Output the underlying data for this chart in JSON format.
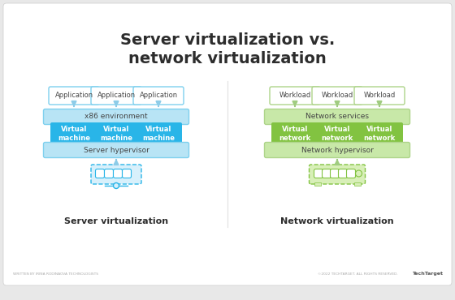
{
  "title": "Server virtualization vs.\nnetwork virtualization",
  "title_fontsize": 14,
  "title_fontweight": "bold",
  "title_color": "#2d2d2d",
  "bg_color": "#e8e8e8",
  "panel_bg": "#ffffff",
  "left_label": "Server virtualization",
  "right_label": "Network virtualization",
  "left_top_boxes": [
    "Application",
    "Application",
    "Application"
  ],
  "right_top_boxes": [
    "Workload",
    "Workload",
    "Workload"
  ],
  "left_mid_bar": "x86 environment",
  "right_mid_bar": "Network services",
  "left_vm_boxes": [
    "Virtual\nmachine",
    "Virtual\nmachine",
    "Virtual\nmachine"
  ],
  "right_vm_boxes": [
    "Virtual\nnetwork",
    "Virtual\nnetwork",
    "Virtual\nnetwork"
  ],
  "left_hyp_bar": "Server hypervisor",
  "right_hyp_bar": "Network hypervisor",
  "left_top_box_fc": "#ffffff",
  "left_top_box_ec": "#7fd0ee",
  "right_top_box_fc": "#ffffff",
  "right_top_box_ec": "#aed48a",
  "left_mid_fc": "#b8e4f5",
  "left_mid_ec": "#7fd0ee",
  "right_mid_fc": "#c8e8a8",
  "right_mid_ec": "#aed48a",
  "left_vm_fc": "#29b5e8",
  "right_vm_fc": "#82c341",
  "left_hyp_fc": "#b8e4f5",
  "left_hyp_ec": "#7fd0ee",
  "right_hyp_fc": "#c8e8a8",
  "right_hyp_ec": "#aed48a",
  "arrow_left_color": "#8dcce8",
  "arrow_right_color": "#a0cc80",
  "srv_icon_fc": "#d8f0fb",
  "srv_icon_ec": "#29b5e8",
  "net_icon_fc": "#d8efb8",
  "net_icon_ec": "#82c341",
  "footer_left": "WRITTEN BY IRINA RODINAOVA TECHNOLOGISTS",
  "footer_right": "©2022 TECHTARGET. ALL RIGHTS RESERVED.",
  "footer_brand": "TechTarget"
}
